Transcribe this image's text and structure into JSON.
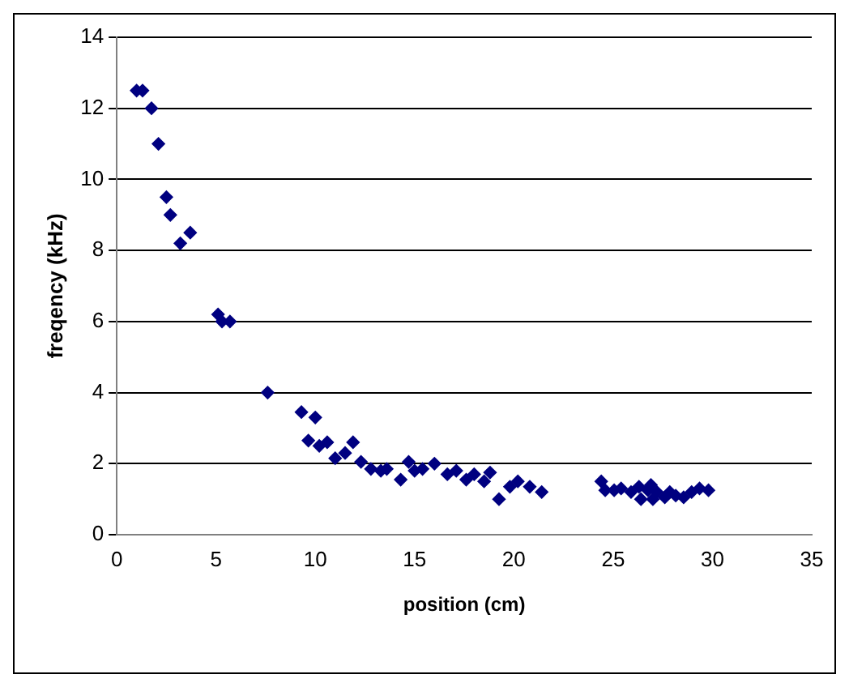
{
  "chart_data": {
    "type": "scatter",
    "xlabel": "position (cm)",
    "ylabel": "freqency (kHz)",
    "xlim": [
      0,
      35
    ],
    "xticks": [
      0,
      5,
      10,
      15,
      20,
      25,
      30,
      35
    ],
    "ylim": [
      0,
      14
    ],
    "yticks": [
      0,
      2,
      4,
      6,
      8,
      10,
      12,
      14
    ],
    "grid": "y",
    "legend": false,
    "marker": "diamond",
    "series": [
      {
        "color": "#000080",
        "x": [
          1.0,
          1.3,
          1.75,
          2.1,
          2.5,
          2.7,
          3.2,
          3.7,
          5.1,
          5.3,
          5.7,
          7.6,
          9.3,
          9.65,
          10.0,
          10.2,
          10.6,
          11.0,
          11.5,
          11.9,
          12.3,
          12.8,
          13.3,
          13.6,
          14.3,
          14.7,
          15.0,
          15.4,
          16.0,
          16.65,
          17.1,
          17.6,
          18.0,
          18.5,
          18.8,
          19.25,
          19.8,
          20.2,
          20.8,
          21.4,
          24.4,
          24.6,
          25.05,
          25.4,
          25.9,
          26.3,
          26.4,
          26.75,
          26.9,
          27.0,
          27.2,
          27.6,
          27.85,
          28.15,
          28.55,
          28.95,
          29.35,
          29.8
        ],
        "values": [
          12.5,
          12.5,
          12.0,
          11.0,
          9.5,
          9.0,
          8.2,
          8.5,
          6.2,
          6.0,
          6.0,
          4.0,
          3.45,
          2.65,
          3.3,
          2.5,
          2.6,
          2.15,
          2.3,
          2.6,
          2.05,
          1.85,
          1.8,
          1.85,
          1.55,
          2.05,
          1.8,
          1.85,
          2.0,
          1.7,
          1.8,
          1.55,
          1.7,
          1.5,
          1.75,
          1.0,
          1.35,
          1.5,
          1.35,
          1.2,
          1.5,
          1.25,
          1.25,
          1.3,
          1.2,
          1.35,
          1.0,
          1.25,
          1.4,
          1.0,
          1.2,
          1.05,
          1.2,
          1.1,
          1.05,
          1.2,
          1.3,
          1.25
        ]
      }
    ]
  }
}
